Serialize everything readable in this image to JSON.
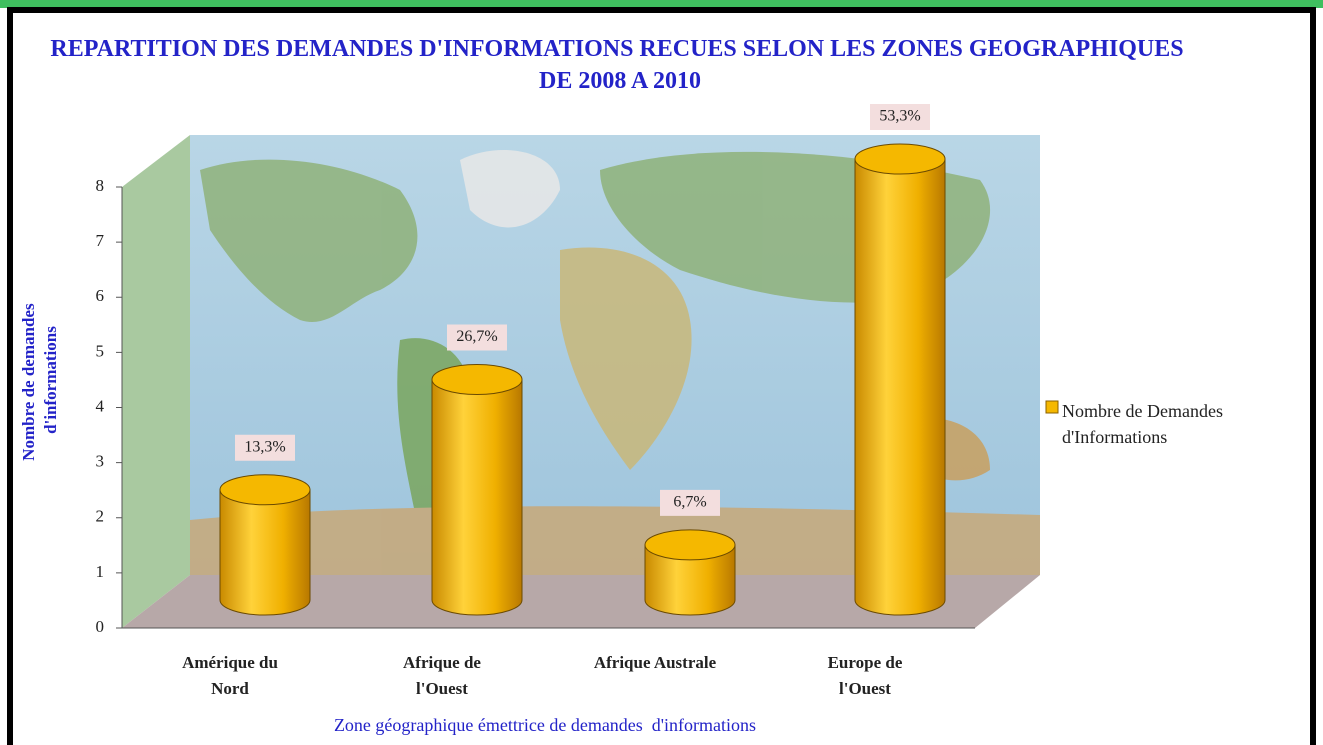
{
  "chart_data": {
    "type": "bar",
    "title": "REPARTITION DES DEMANDES D'INFORMATIONS RECUES SELON LES ZONES GEOGRAPHIQUES DE 2008 A 2010",
    "x_label": "Zone géographique émettrice de demandes  d'informations",
    "y_label": "Nombre de demandes d'informations",
    "categories": [
      "Amérique du Nord",
      "Afrique de l'Ouest",
      "Afrique Australe",
      "Europe de l'Ouest"
    ],
    "series": [
      {
        "name": "Nombre de Demandes d'Informations",
        "color": "#f5b800",
        "values": [
          2,
          4,
          1,
          8
        ]
      }
    ],
    "data_labels": [
      {
        "value": 13.3,
        "label": "13,3%"
      },
      {
        "value": 26.7,
        "label": "26,7%"
      },
      {
        "value": 6.7,
        "label": "6,7%"
      },
      {
        "value": 53.3,
        "label": "53,3%"
      }
    ],
    "ylim": [
      0,
      8
    ],
    "yticks": [
      0,
      1,
      2,
      3,
      4,
      5,
      6,
      7,
      8
    ],
    "grid": false,
    "legend": "right"
  }
}
